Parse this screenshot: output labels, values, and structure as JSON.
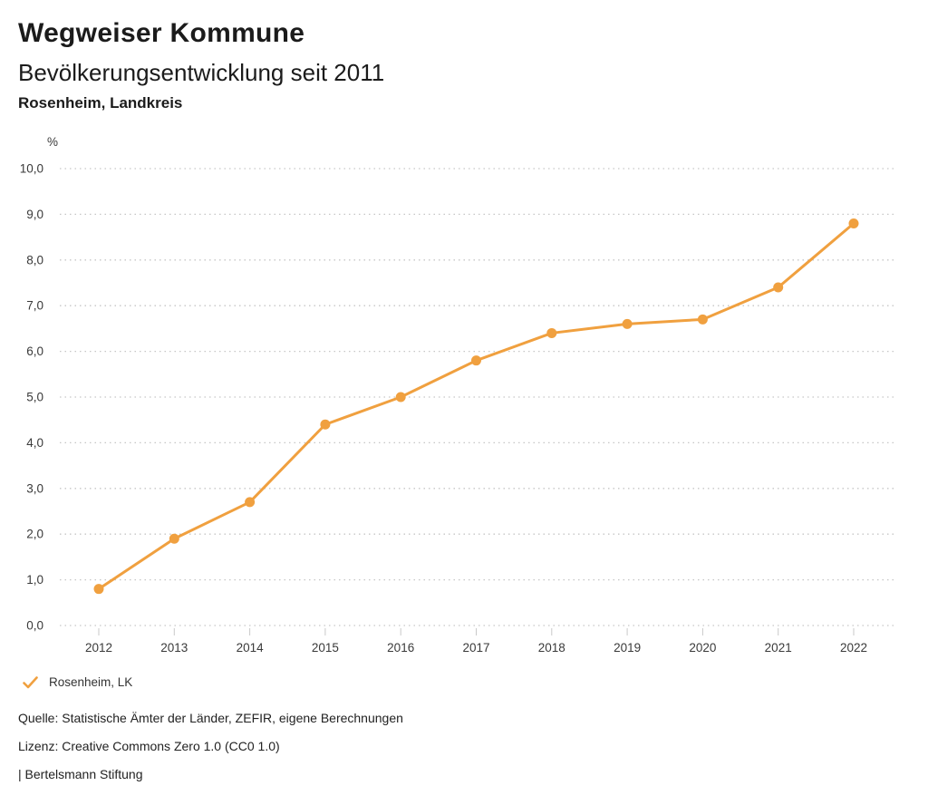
{
  "chart_data": {
    "type": "line",
    "title": "Wegweiser Kommune",
    "subtitle": "Bevölkerungsentwicklung seit 2011",
    "region": "Rosenheim, Landkreis",
    "ylabel": "%",
    "xlabel": "",
    "x": [
      "2012",
      "2013",
      "2014",
      "2015",
      "2016",
      "2017",
      "2018",
      "2019",
      "2020",
      "2021",
      "2022"
    ],
    "series": [
      {
        "name": "Rosenheim, LK",
        "values": [
          0.8,
          1.9,
          2.7,
          4.4,
          5.0,
          5.8,
          6.4,
          6.6,
          6.7,
          7.4,
          8.8
        ],
        "color": "#F0A03F"
      }
    ],
    "ylim": [
      0,
      10
    ],
    "ytick_values": [
      0,
      1,
      2,
      3,
      4,
      5,
      6,
      7,
      8,
      9,
      10
    ],
    "ytick_labels": [
      "0,0",
      "1,0",
      "2,0",
      "3,0",
      "4,0",
      "5,0",
      "6,0",
      "7,0",
      "8,0",
      "9,0",
      "10,0"
    ],
    "grid": "horizontal-dotted",
    "grid_color": "#c6c6c6",
    "tick_color": "#c9c9c9",
    "legend_position": "bottom-left"
  },
  "legend": {
    "icon": "check-icon",
    "icon_color": "#F0A03F"
  },
  "footer": {
    "source": "Quelle: Statistische Ämter der Länder, ZEFIR, eigene Berechnungen",
    "license": "Lizenz: Creative Commons Zero 1.0 (CC0 1.0)",
    "attribution": "| Bertelsmann Stiftung"
  }
}
